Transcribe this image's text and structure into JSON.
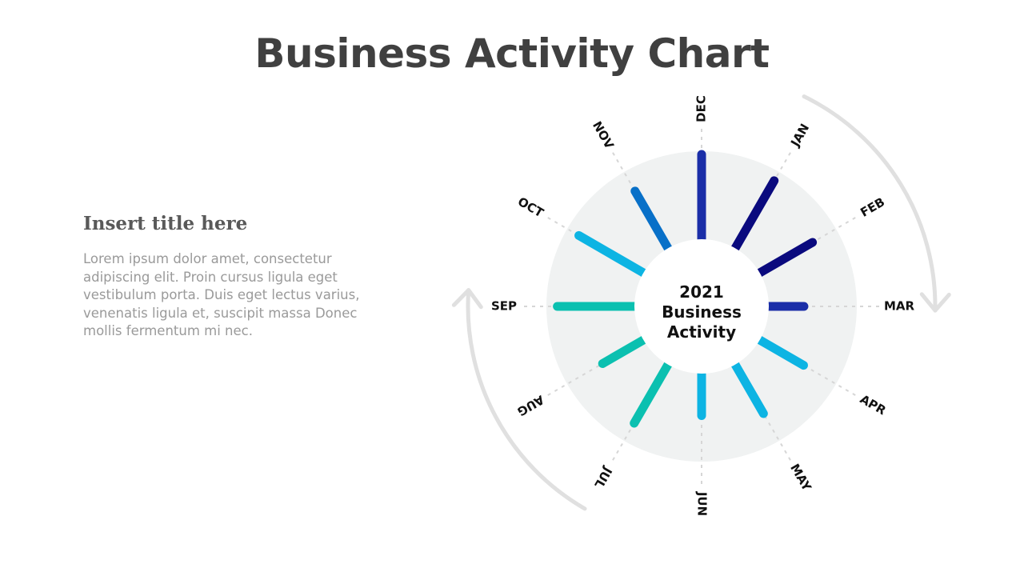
{
  "header": {
    "title": "Business Activity Chart"
  },
  "side": {
    "title": "Insert title here",
    "body": "Lorem ipsum dolor amet, consectetur adipiscing elit. Proin cursus ligula eget vestibulum porta. Duis eget lectus varius, venenatis ligula et, suscipit massa Donec mollis fermentum mi nec."
  },
  "chart_data": {
    "type": "radial-bar",
    "center_label": [
      "2021",
      "Business",
      "Activity"
    ],
    "categories": [
      "DEC",
      "JAN",
      "FEB",
      "MAR",
      "APR",
      "MAY",
      "JUN",
      "JUL",
      "AUG",
      "SEP",
      "OCT",
      "NOV"
    ],
    "values": [
      1.0,
      0.92,
      0.72,
      0.42,
      0.6,
      0.67,
      0.5,
      0.8,
      0.56,
      0.91,
      0.88,
      0.78
    ],
    "colors": [
      "#1a2ea8",
      "#0a0a7e",
      "#0a0a7e",
      "#1a2ea8",
      "#0db4e3",
      "#0db4e3",
      "#0db4e3",
      "#0bc0b0",
      "#0bc0b0",
      "#0bc0b0",
      "#0db4e3",
      "#0870c8"
    ],
    "background_color": "#f0f2f2",
    "arrow_color": "#e0e0e0"
  }
}
